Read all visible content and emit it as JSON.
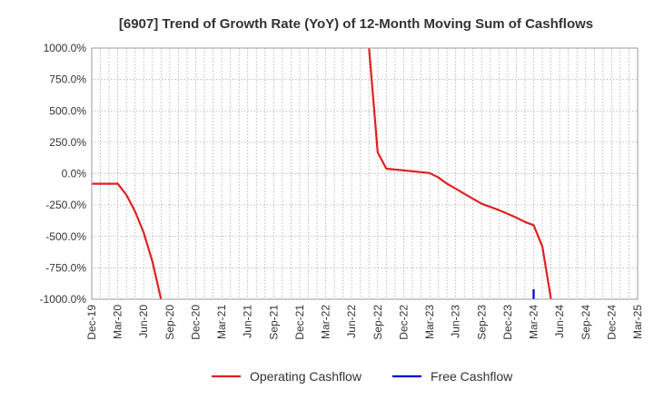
{
  "chart_data": {
    "type": "line",
    "title": "[6907]  Trend of Growth Rate (YoY) of 12-Month Moving Sum of Cashflows",
    "xlabel": "",
    "ylabel": "",
    "ylim": [
      -1000,
      1000
    ],
    "y_ticks": [
      "1000.0%",
      "750.0%",
      "500.0%",
      "250.0%",
      "0.0%",
      "-250.0%",
      "-500.0%",
      "-750.0%",
      "-1000.0%"
    ],
    "x_ticks": [
      "Dec-19",
      "Mar-20",
      "Jun-20",
      "Sep-20",
      "Dec-20",
      "Mar-21",
      "Jun-21",
      "Sep-21",
      "Dec-21",
      "Mar-22",
      "Jun-22",
      "Sep-22",
      "Dec-22",
      "Mar-23",
      "Jun-23",
      "Sep-23",
      "Dec-23",
      "Mar-24",
      "Jun-24",
      "Sep-24",
      "Dec-24",
      "Mar-25"
    ],
    "x_range": [
      "2019-12",
      "2025-03"
    ],
    "grid": true,
    "legend_position": "bottom",
    "series": [
      {
        "name": "Operating Cashflow",
        "color": "#e02020",
        "points": [
          [
            "2019-12",
            -80
          ],
          [
            "2020-01",
            -80
          ],
          [
            "2020-02",
            -80
          ],
          [
            "2020-03",
            -80
          ],
          [
            "2020-04",
            -170
          ],
          [
            "2020-05",
            -300
          ],
          [
            "2020-06",
            -470
          ],
          [
            "2020-07",
            -700
          ],
          [
            "2020-08",
            -1000
          ],
          [
            "2022-08",
            1000
          ],
          [
            "2022-09",
            170
          ],
          [
            "2022-10",
            40
          ],
          [
            "2023-03",
            5
          ],
          [
            "2023-04",
            -30
          ],
          [
            "2023-05",
            -80
          ],
          [
            "2023-06",
            -120
          ],
          [
            "2023-07",
            -160
          ],
          [
            "2023-08",
            -200
          ],
          [
            "2023-09",
            -240
          ],
          [
            "2023-10",
            -265
          ],
          [
            "2023-11",
            -290
          ],
          [
            "2023-12",
            -320
          ],
          [
            "2024-01",
            -350
          ],
          [
            "2024-02",
            -385
          ],
          [
            "2024-03",
            -410
          ],
          [
            "2024-04",
            -580
          ],
          [
            "2024-05",
            -1000
          ]
        ],
        "segments": [
          [
            0,
            8
          ],
          [
            9,
            26
          ]
        ]
      },
      {
        "name": "Free Cashflow",
        "color": "#0000cc",
        "points": [
          [
            "2024-03",
            -920
          ],
          [
            "2024-03",
            -1000
          ]
        ],
        "segments": [
          [
            0,
            1
          ]
        ]
      }
    ]
  }
}
